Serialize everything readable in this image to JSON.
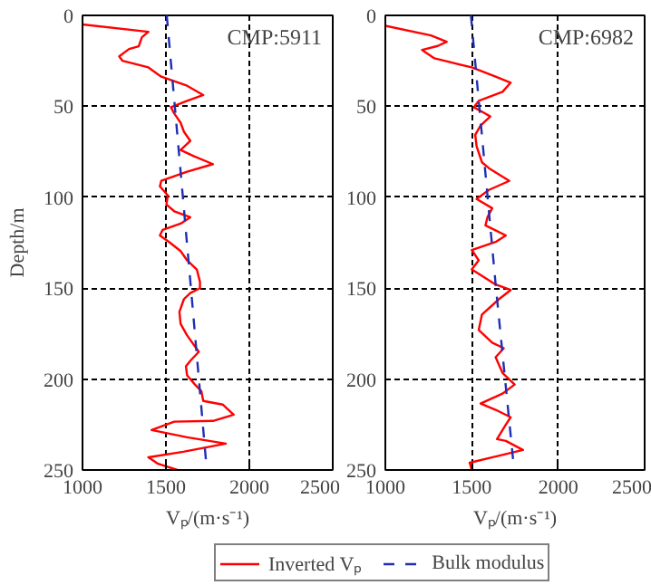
{
  "chart_data": [
    {
      "type": "line",
      "xlabel": "Vₚ/(m·s⁻¹)",
      "ylabel": "Depth/m",
      "annotations": [
        "CMP:5911"
      ],
      "xlim": [
        1000,
        2500
      ],
      "xticks": [
        1000,
        1500,
        2000,
        2500
      ],
      "ylim": [
        250,
        0
      ],
      "yticks": [
        0,
        50,
        100,
        150,
        200,
        250
      ],
      "grid": true,
      "legend": "bottom",
      "series": [
        {
          "name": "Inverted Vₚ",
          "color": "#ff0000",
          "line_style": "solid",
          "x": [
            1000,
            1395,
            1356,
            1337,
            1279,
            1220,
            1240,
            1395,
            1472,
            1627,
            1724,
            1627,
            1530,
            1550,
            1588,
            1608,
            1646,
            1588,
            1666,
            1782,
            1627,
            1472,
            1464,
            1511,
            1503,
            1550,
            1646,
            1588,
            1480,
            1464,
            1519,
            1588,
            1627,
            1685,
            1704,
            1704,
            1646,
            1608,
            1581,
            1588,
            1627,
            1697,
            1646,
            1620,
            1627,
            1674,
            1712,
            1724,
            1840,
            1906,
            1782,
            1550,
            1414,
            1627,
            1859,
            1604,
            1395,
            1453,
            1569
          ],
          "values": [
            5,
            9,
            12,
            17,
            18.5,
            22.5,
            25,
            28.6,
            33.7,
            38.7,
            43.8,
            47,
            50.5,
            54,
            59,
            64,
            69,
            74,
            77.4,
            81.8,
            86,
            91,
            94,
            99,
            104,
            107.7,
            111,
            114.5,
            118,
            121,
            124.6,
            129.6,
            134.7,
            139.7,
            146.5,
            150,
            152.7,
            156,
            163,
            169.6,
            176,
            185,
            190,
            193,
            198,
            203,
            206.6,
            212,
            214,
            219.6,
            223,
            223.4,
            228,
            232,
            235.5,
            240,
            243,
            246.6,
            250
          ]
        },
        {
          "name": "Bulk modulus",
          "color": "#1f2fb4",
          "line_style": "dashed",
          "x": [
            1505,
            1650,
            1745
          ],
          "values": [
            0,
            150,
            250
          ]
        }
      ]
    },
    {
      "type": "line",
      "xlabel": "Vₚ/(m·s⁻¹)",
      "annotations": [
        "CMP:6982"
      ],
      "xlim": [
        1000,
        2500
      ],
      "xticks": [
        1000,
        1500,
        2000,
        2500
      ],
      "ylim": [
        250,
        0
      ],
      "yticks": [
        0,
        50,
        100,
        150,
        200,
        250
      ],
      "grid": true,
      "series": [
        {
          "color": "#ff0000",
          "line_style": "solid",
          "x": [
            1000,
            1264,
            1355,
            1303,
            1213,
            1284,
            1343,
            1500,
            1638,
            1725,
            1678,
            1540,
            1512,
            1579,
            1607,
            1551,
            1520,
            1528,
            1559,
            1599,
            1717,
            1599,
            1528,
            1618,
            1591,
            1579,
            1697,
            1638,
            1500,
            1540,
            1500,
            1638,
            1725,
            1658,
            1559,
            1540,
            1618,
            1685,
            1638,
            1678,
            1748,
            1678,
            1551,
            1638,
            1725,
            1697,
            1646,
            1697,
            1796,
            1638,
            1488,
            1500
          ],
          "values": [
            5.7,
            11,
            14.5,
            16.8,
            19,
            23.6,
            25,
            28.6,
            33.7,
            37,
            42,
            47,
            50.5,
            54,
            55.6,
            60.6,
            65.7,
            72,
            80.8,
            84,
            91,
            96,
            101,
            106,
            111,
            115.5,
            121,
            124.6,
            129,
            134.7,
            139.7,
            148,
            151,
            156,
            164.5,
            173,
            180,
            183,
            188,
            196.6,
            203,
            208,
            213.5,
            216.9,
            221,
            225,
            233,
            234,
            239,
            242.6,
            246,
            250
          ]
        },
        {
          "color": "#1f2fb4",
          "line_style": "dashed",
          "x": [
            1495,
            1640,
            1745
          ],
          "values": [
            0,
            150,
            250
          ]
        }
      ]
    }
  ]
}
